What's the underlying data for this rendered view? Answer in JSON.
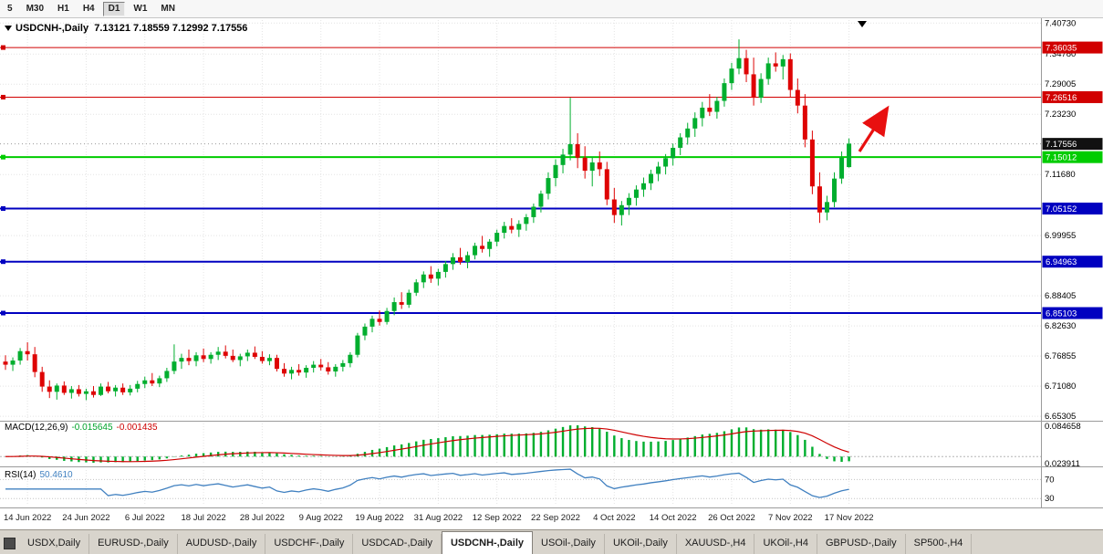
{
  "toolbar": {
    "timeframes": [
      {
        "label": "5",
        "active": false
      },
      {
        "label": "M30",
        "active": false
      },
      {
        "label": "H1",
        "active": false
      },
      {
        "label": "H4",
        "active": false
      },
      {
        "label": "D1",
        "active": true
      },
      {
        "label": "W1",
        "active": false
      },
      {
        "label": "MN",
        "active": false
      }
    ]
  },
  "chart": {
    "title": {
      "symbol": "USDCNH-,Daily",
      "ohlc": "7.13121 7.18559 7.12992 7.17556"
    },
    "colors": {
      "up": "#00AE2E",
      "down": "#DE0404",
      "grid": "#e4e4e4"
    },
    "price_axis": {
      "ticks": [
        "7.40730",
        "7.34780",
        "7.29005",
        "7.23230",
        "7.11680",
        "6.99955",
        "6.88405",
        "6.82630",
        "6.76855",
        "6.71080",
        "6.65305"
      ]
    },
    "current_price": {
      "value": "7.17556",
      "badge_color": "#111111"
    },
    "hlines": [
      {
        "value": "7.36035",
        "color": "#D10000",
        "width": 1
      },
      {
        "value": "7.26516",
        "color": "#D10000",
        "width": 1
      },
      {
        "value": "7.15012",
        "color": "#00CC00",
        "width": 2
      },
      {
        "value": "7.05152",
        "color": "#0000C0",
        "width": 2
      },
      {
        "value": "6.94963",
        "color": "#0000C0",
        "width": 2
      },
      {
        "value": "6.85103",
        "color": "#0000C0",
        "width": 2
      }
    ],
    "annotation_arrow": {
      "color": "#E81010"
    },
    "date_axis": {
      "labels": [
        {
          "i": 3,
          "t": "14 Jun 2022"
        },
        {
          "i": 11,
          "t": "24 Jun 2022"
        },
        {
          "i": 19,
          "t": "6 Jul 2022"
        },
        {
          "i": 27,
          "t": "18 Jul 2022"
        },
        {
          "i": 35,
          "t": "28 Jul 2022"
        },
        {
          "i": 43,
          "t": "9 Aug 2022"
        },
        {
          "i": 51,
          "t": "19 Aug 2022"
        },
        {
          "i": 59,
          "t": "31 Aug 2022"
        },
        {
          "i": 67,
          "t": "12 Sep 2022"
        },
        {
          "i": 75,
          "t": "22 Sep 2022"
        },
        {
          "i": 83,
          "t": "4 Oct 2022"
        },
        {
          "i": 91,
          "t": "14 Oct 2022"
        },
        {
          "i": 99,
          "t": "26 Oct 2022"
        },
        {
          "i": 107,
          "t": "7 Nov 2022"
        },
        {
          "i": 115,
          "t": "17 Nov 2022"
        }
      ]
    },
    "candles": [
      [
        6.758,
        6.77,
        6.742,
        6.752
      ],
      [
        6.752,
        6.766,
        6.74,
        6.76
      ],
      [
        6.76,
        6.784,
        6.752,
        6.778
      ],
      [
        6.778,
        6.795,
        6.76,
        6.772
      ],
      [
        6.772,
        6.786,
        6.728,
        6.738
      ],
      [
        6.738,
        6.748,
        6.7,
        6.71
      ],
      [
        6.71,
        6.722,
        6.688,
        6.7
      ],
      [
        6.7,
        6.716,
        6.685,
        6.712
      ],
      [
        6.712,
        6.72,
        6.694,
        6.698
      ],
      [
        6.698,
        6.711,
        6.687,
        6.705
      ],
      [
        6.705,
        6.713,
        6.691,
        6.696
      ],
      [
        6.696,
        6.706,
        6.684,
        6.701
      ],
      [
        6.701,
        6.711,
        6.689,
        6.694
      ],
      [
        6.694,
        6.716,
        6.692,
        6.71
      ],
      [
        6.71,
        6.719,
        6.697,
        6.701
      ],
      [
        6.701,
        6.713,
        6.691,
        6.708
      ],
      [
        6.708,
        6.716,
        6.694,
        6.699
      ],
      [
        6.699,
        6.713,
        6.693,
        6.706
      ],
      [
        6.706,
        6.721,
        6.699,
        6.715
      ],
      [
        6.715,
        6.729,
        6.707,
        6.722
      ],
      [
        6.722,
        6.736,
        6.711,
        6.716
      ],
      [
        6.716,
        6.731,
        6.709,
        6.726
      ],
      [
        6.726,
        6.746,
        6.719,
        6.74
      ],
      [
        6.74,
        6.791,
        6.734,
        6.758
      ],
      [
        6.758,
        6.773,
        6.744,
        6.765
      ],
      [
        6.765,
        6.781,
        6.751,
        6.759
      ],
      [
        6.759,
        6.776,
        6.749,
        6.77
      ],
      [
        6.77,
        6.783,
        6.757,
        6.763
      ],
      [
        6.763,
        6.776,
        6.754,
        6.771
      ],
      [
        6.771,
        6.786,
        6.761,
        6.777
      ],
      [
        6.777,
        6.789,
        6.764,
        6.769
      ],
      [
        6.769,
        6.781,
        6.757,
        6.761
      ],
      [
        6.761,
        6.773,
        6.749,
        6.768
      ],
      [
        6.768,
        6.781,
        6.759,
        6.775
      ],
      [
        6.775,
        6.787,
        6.763,
        6.767
      ],
      [
        6.767,
        6.778,
        6.754,
        6.759
      ],
      [
        6.759,
        6.772,
        6.751,
        6.765
      ],
      [
        6.765,
        6.771,
        6.739,
        6.744
      ],
      [
        6.744,
        6.755,
        6.729,
        6.735
      ],
      [
        6.735,
        6.748,
        6.724,
        6.742
      ],
      [
        6.742,
        6.753,
        6.731,
        6.737
      ],
      [
        6.737,
        6.751,
        6.727,
        6.746
      ],
      [
        6.746,
        6.759,
        6.737,
        6.752
      ],
      [
        6.752,
        6.763,
        6.741,
        6.747
      ],
      [
        6.747,
        6.757,
        6.733,
        6.739
      ],
      [
        6.739,
        6.753,
        6.729,
        6.748
      ],
      [
        6.748,
        6.761,
        6.739,
        6.755
      ],
      [
        6.755,
        6.776,
        6.747,
        6.771
      ],
      [
        6.771,
        6.813,
        6.766,
        6.808
      ],
      [
        6.808,
        6.831,
        6.799,
        6.825
      ],
      [
        6.825,
        6.846,
        6.814,
        6.84
      ],
      [
        6.84,
        6.856,
        6.827,
        6.834
      ],
      [
        6.834,
        6.861,
        6.829,
        6.855
      ],
      [
        6.855,
        6.881,
        6.847,
        6.872
      ],
      [
        6.872,
        6.891,
        6.859,
        6.867
      ],
      [
        6.867,
        6.896,
        6.861,
        6.89
      ],
      [
        6.89,
        6.916,
        6.884,
        6.91
      ],
      [
        6.91,
        6.931,
        6.899,
        6.925
      ],
      [
        6.925,
        6.941,
        6.909,
        6.917
      ],
      [
        6.917,
        6.936,
        6.904,
        6.93
      ],
      [
        6.93,
        6.951,
        6.919,
        6.945
      ],
      [
        6.945,
        6.966,
        6.934,
        6.958
      ],
      [
        6.958,
        6.976,
        6.944,
        6.949
      ],
      [
        6.949,
        6.969,
        6.937,
        6.962
      ],
      [
        6.962,
        6.986,
        6.954,
        6.98
      ],
      [
        6.98,
        6.999,
        6.967,
        6.974
      ],
      [
        6.974,
        6.993,
        6.959,
        6.988
      ],
      [
        6.988,
        7.011,
        6.979,
        7.005
      ],
      [
        7.005,
        7.026,
        6.994,
        7.018
      ],
      [
        7.018,
        7.033,
        7.004,
        7.011
      ],
      [
        7.011,
        7.029,
        6.997,
        7.022
      ],
      [
        7.022,
        7.041,
        7.009,
        7.035
      ],
      [
        7.035,
        7.061,
        7.024,
        7.055
      ],
      [
        7.055,
        7.086,
        7.044,
        7.08
      ],
      [
        7.08,
        7.121,
        7.069,
        7.11
      ],
      [
        7.11,
        7.146,
        7.094,
        7.135
      ],
      [
        7.135,
        7.166,
        7.119,
        7.155
      ],
      [
        7.155,
        7.264,
        7.144,
        7.175
      ],
      [
        7.175,
        7.196,
        7.129,
        7.149
      ],
      [
        7.149,
        7.171,
        7.109,
        7.124
      ],
      [
        7.124,
        7.151,
        7.094,
        7.14
      ],
      [
        7.14,
        7.161,
        7.114,
        7.127
      ],
      [
        7.127,
        7.141,
        7.058,
        7.069
      ],
      [
        7.069,
        7.091,
        7.024,
        7.039
      ],
      [
        7.039,
        7.066,
        7.019,
        7.058
      ],
      [
        7.058,
        7.081,
        7.039,
        7.072
      ],
      [
        7.072,
        7.096,
        7.057,
        7.088
      ],
      [
        7.088,
        7.111,
        7.074,
        7.1
      ],
      [
        7.1,
        7.126,
        7.087,
        7.118
      ],
      [
        7.118,
        7.141,
        7.104,
        7.132
      ],
      [
        7.132,
        7.156,
        7.117,
        7.148
      ],
      [
        7.148,
        7.176,
        7.134,
        7.168
      ],
      [
        7.168,
        7.196,
        7.154,
        7.188
      ],
      [
        7.188,
        7.216,
        7.174,
        7.205
      ],
      [
        7.205,
        7.236,
        7.189,
        7.225
      ],
      [
        7.225,
        7.256,
        7.209,
        7.245
      ],
      [
        7.245,
        7.271,
        7.229,
        7.237
      ],
      [
        7.237,
        7.266,
        7.224,
        7.258
      ],
      [
        7.258,
        7.301,
        7.247,
        7.292
      ],
      [
        7.292,
        7.331,
        7.279,
        7.32
      ],
      [
        7.32,
        7.376,
        7.309,
        7.34
      ],
      [
        7.34,
        7.356,
        7.294,
        7.309
      ],
      [
        7.309,
        7.341,
        7.249,
        7.264
      ],
      [
        7.264,
        7.311,
        7.254,
        7.3
      ],
      [
        7.3,
        7.341,
        7.289,
        7.33
      ],
      [
        7.33,
        7.351,
        7.314,
        7.324
      ],
      [
        7.324,
        7.346,
        7.299,
        7.338
      ],
      [
        7.338,
        7.349,
        7.264,
        7.279
      ],
      [
        7.279,
        7.301,
        7.234,
        7.249
      ],
      [
        7.249,
        7.271,
        7.169,
        7.184
      ],
      [
        7.184,
        7.201,
        7.079,
        7.094
      ],
      [
        7.094,
        7.121,
        7.024,
        7.044
      ],
      [
        7.044,
        7.076,
        7.029,
        7.064
      ],
      [
        7.064,
        7.121,
        7.054,
        7.109
      ],
      [
        7.109,
        7.161,
        7.099,
        7.149
      ],
      [
        7.131,
        7.186,
        7.13,
        7.176
      ]
    ]
  },
  "macd": {
    "name": "MACD(12,26,9)",
    "value_main": "-0.015645",
    "value_signal": "-0.001435",
    "axis_labels": [
      "0.084658",
      "0.023911"
    ],
    "colors": {
      "histogram": "#00AE2E",
      "signal": "#CE0000"
    }
  },
  "rsi": {
    "name": "RSI(14)",
    "value": "50.4610",
    "levels": [
      70,
      30
    ],
    "color": "#4080C0"
  },
  "tabs": {
    "items": [
      {
        "label": "USDX,Daily",
        "active": false
      },
      {
        "label": "EURUSD-,Daily",
        "active": false
      },
      {
        "label": "AUDUSD-,Daily",
        "active": false
      },
      {
        "label": "USDCHF-,Daily",
        "active": false
      },
      {
        "label": "USDCAD-,Daily",
        "active": false
      },
      {
        "label": "USDCNH-,Daily",
        "active": true
      },
      {
        "label": "USOil-,Daily",
        "active": false
      },
      {
        "label": "UKOil-,Daily",
        "active": false
      },
      {
        "label": "XAUUSD-,H4",
        "active": false
      },
      {
        "label": "UKOil-,H4",
        "active": false
      },
      {
        "label": "GBPUSD-,Daily",
        "active": false
      },
      {
        "label": "SP500-,H4",
        "active": false
      }
    ]
  }
}
